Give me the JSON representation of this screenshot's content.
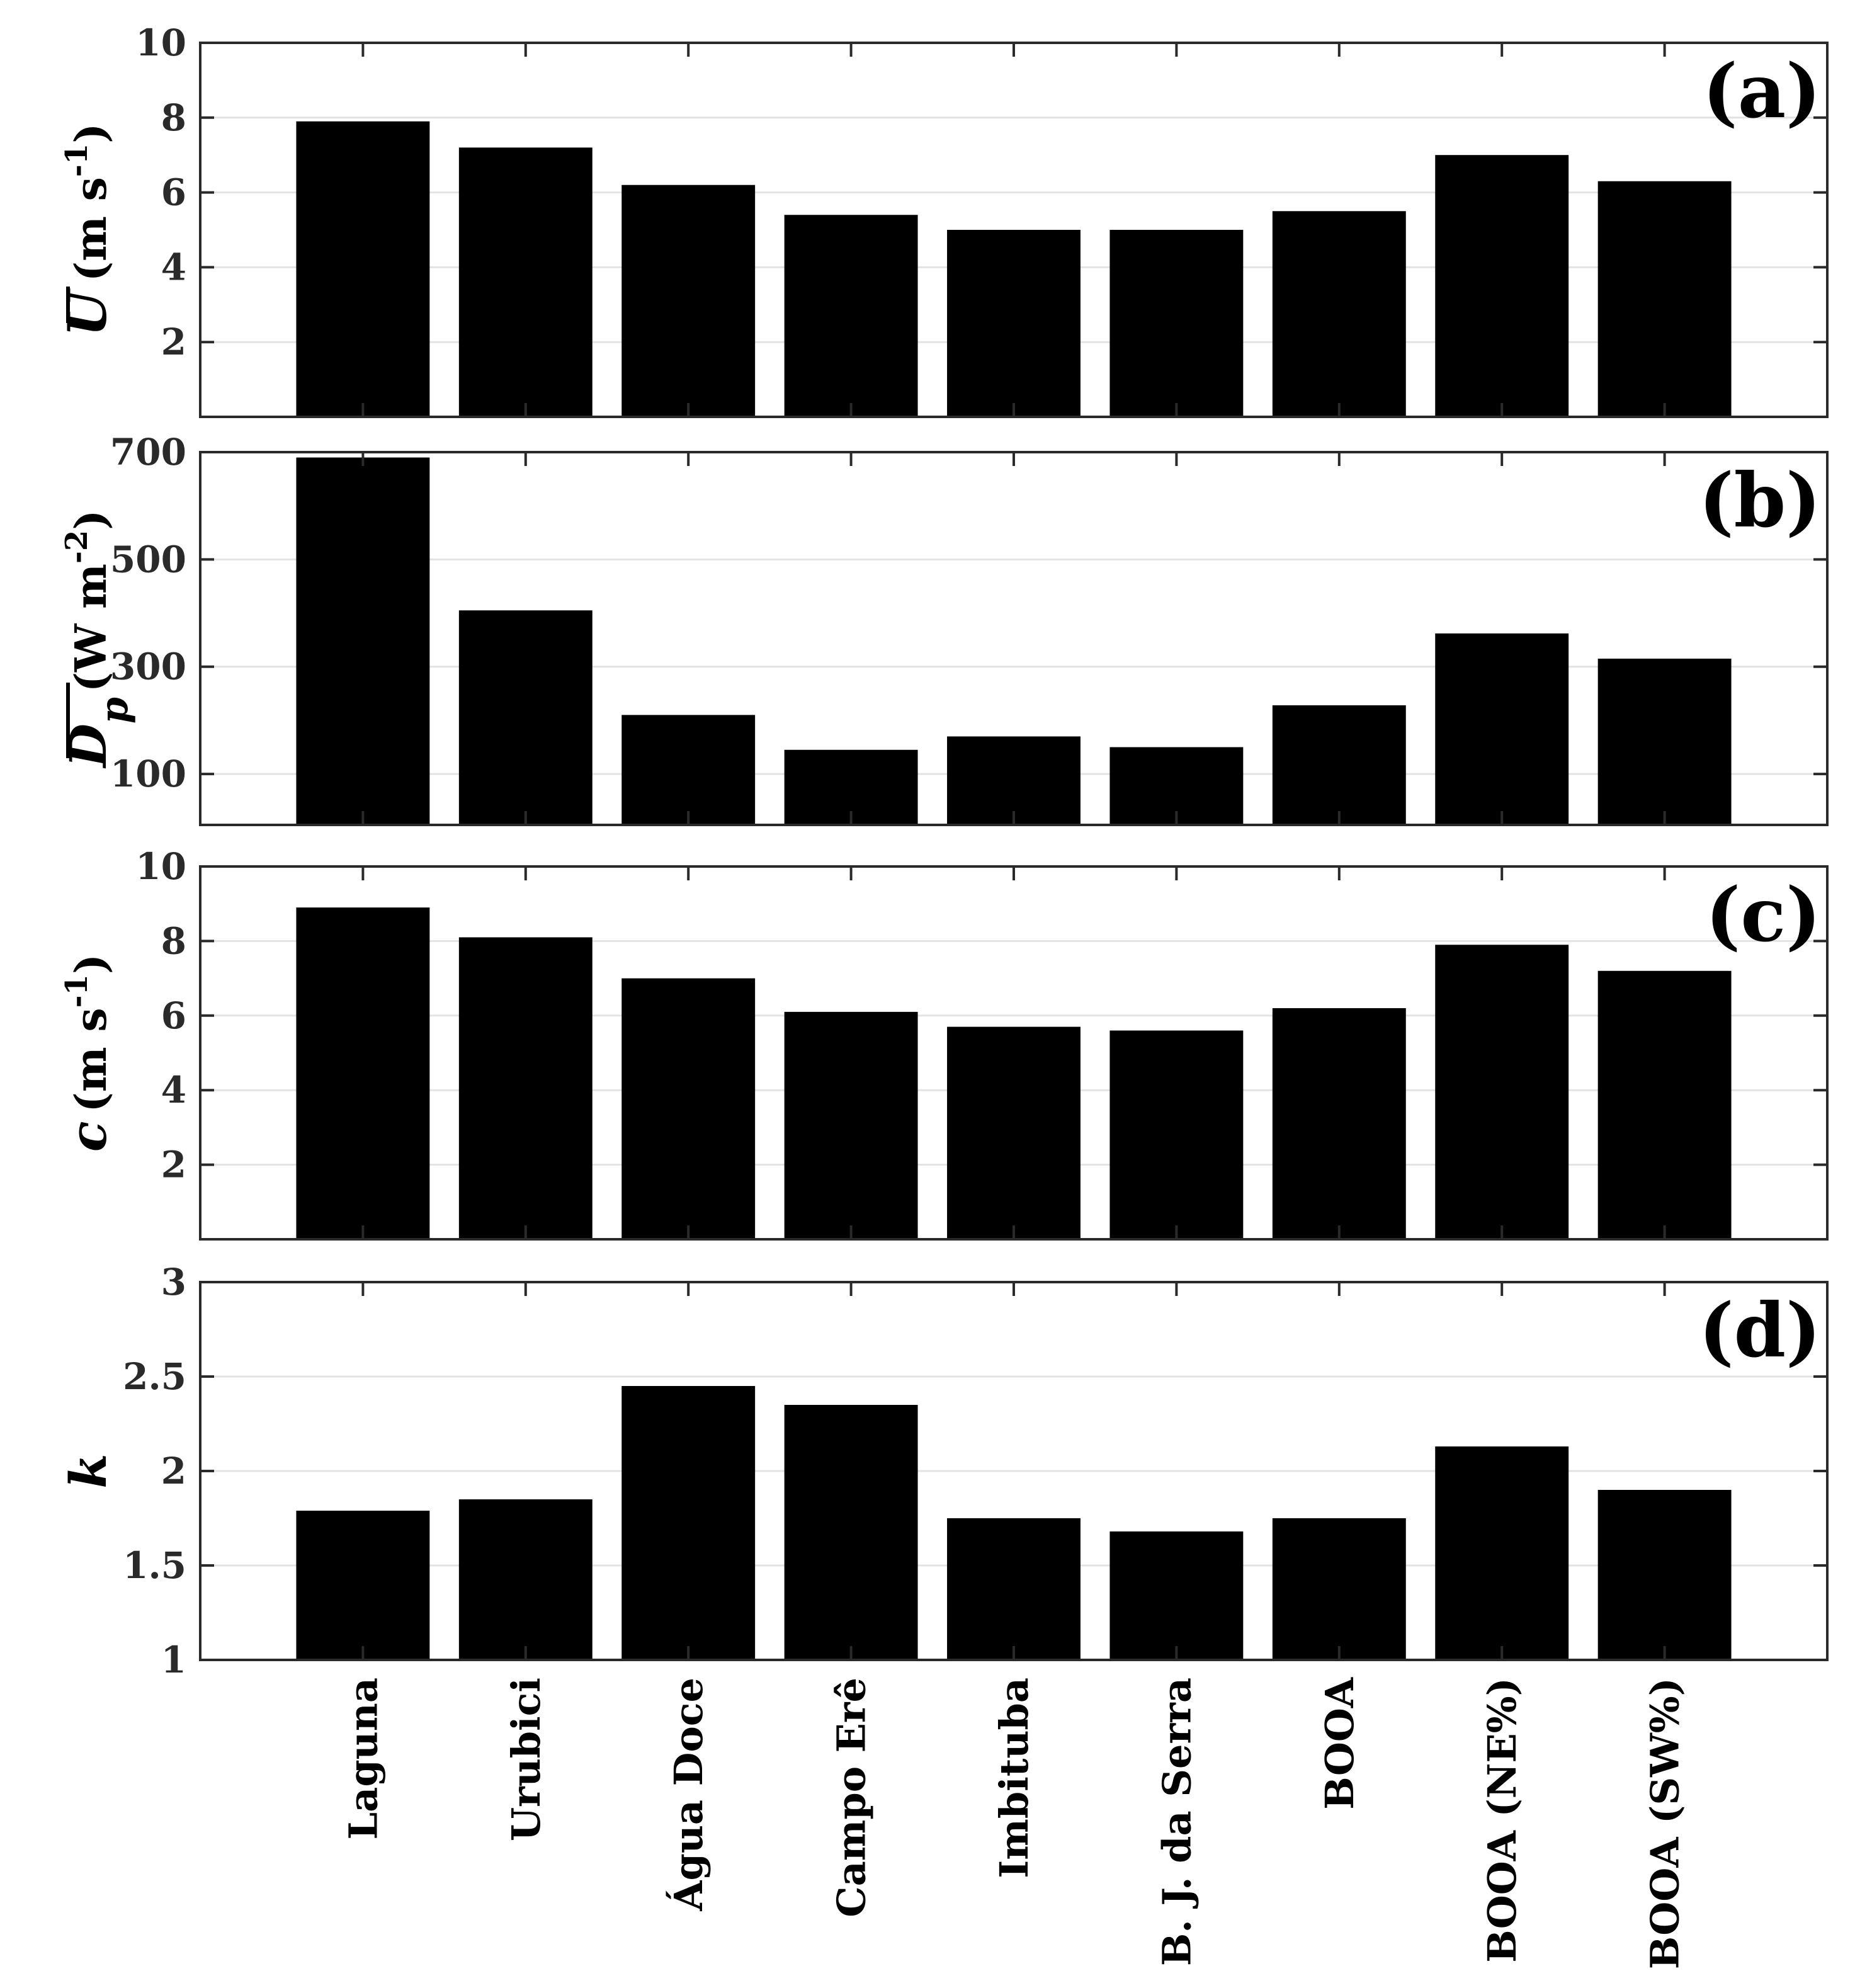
{
  "chart_data": {
    "type": "bar",
    "categories": [
      "Laguna",
      "Urubici",
      "Água Doce",
      "Campo Erê",
      "Imbituba",
      "B. J. da Serra",
      "BOOA",
      "BOOA (NE%)",
      "BOOA (SW%)"
    ],
    "grid": true,
    "panels": [
      {
        "label": "(a)",
        "ylabel": {
          "symbol": "U",
          "unit_text": "(m s",
          "exponent": "-1",
          "close": ")"
        },
        "ylim": [
          0,
          10
        ],
        "yticks": [
          2,
          4,
          6,
          8,
          10
        ],
        "values": [
          7.9,
          7.2,
          6.2,
          5.4,
          5.0,
          5.0,
          5.5,
          7.0,
          6.3
        ]
      },
      {
        "label": "(b)",
        "ylabel": {
          "symbol": "D",
          "subscript": "p",
          "unit_text": "(W m",
          "exponent": "-2",
          "close": ")"
        },
        "ylim": [
          5,
          700
        ],
        "yticks": [
          100,
          300,
          500,
          700
        ],
        "values": [
          690,
          405,
          210,
          145,
          170,
          150,
          228,
          362,
          315
        ]
      },
      {
        "label": "(c)",
        "ylabel": {
          "symbol": "c",
          "unit_text": "(m s",
          "exponent": "-1",
          "close": ")"
        },
        "ylim": [
          0,
          10
        ],
        "yticks": [
          2,
          4,
          6,
          8,
          10
        ],
        "values": [
          8.9,
          8.1,
          7.0,
          6.1,
          5.7,
          5.6,
          6.2,
          7.9,
          7.2
        ]
      },
      {
        "label": "(d)",
        "ylabel": {
          "symbol": "k"
        },
        "ylim": [
          1,
          3
        ],
        "yticks": [
          1,
          1.5,
          2,
          2.5,
          3
        ],
        "values": [
          1.79,
          1.85,
          2.45,
          2.35,
          1.75,
          1.68,
          1.75,
          2.13,
          1.9
        ]
      }
    ]
  }
}
